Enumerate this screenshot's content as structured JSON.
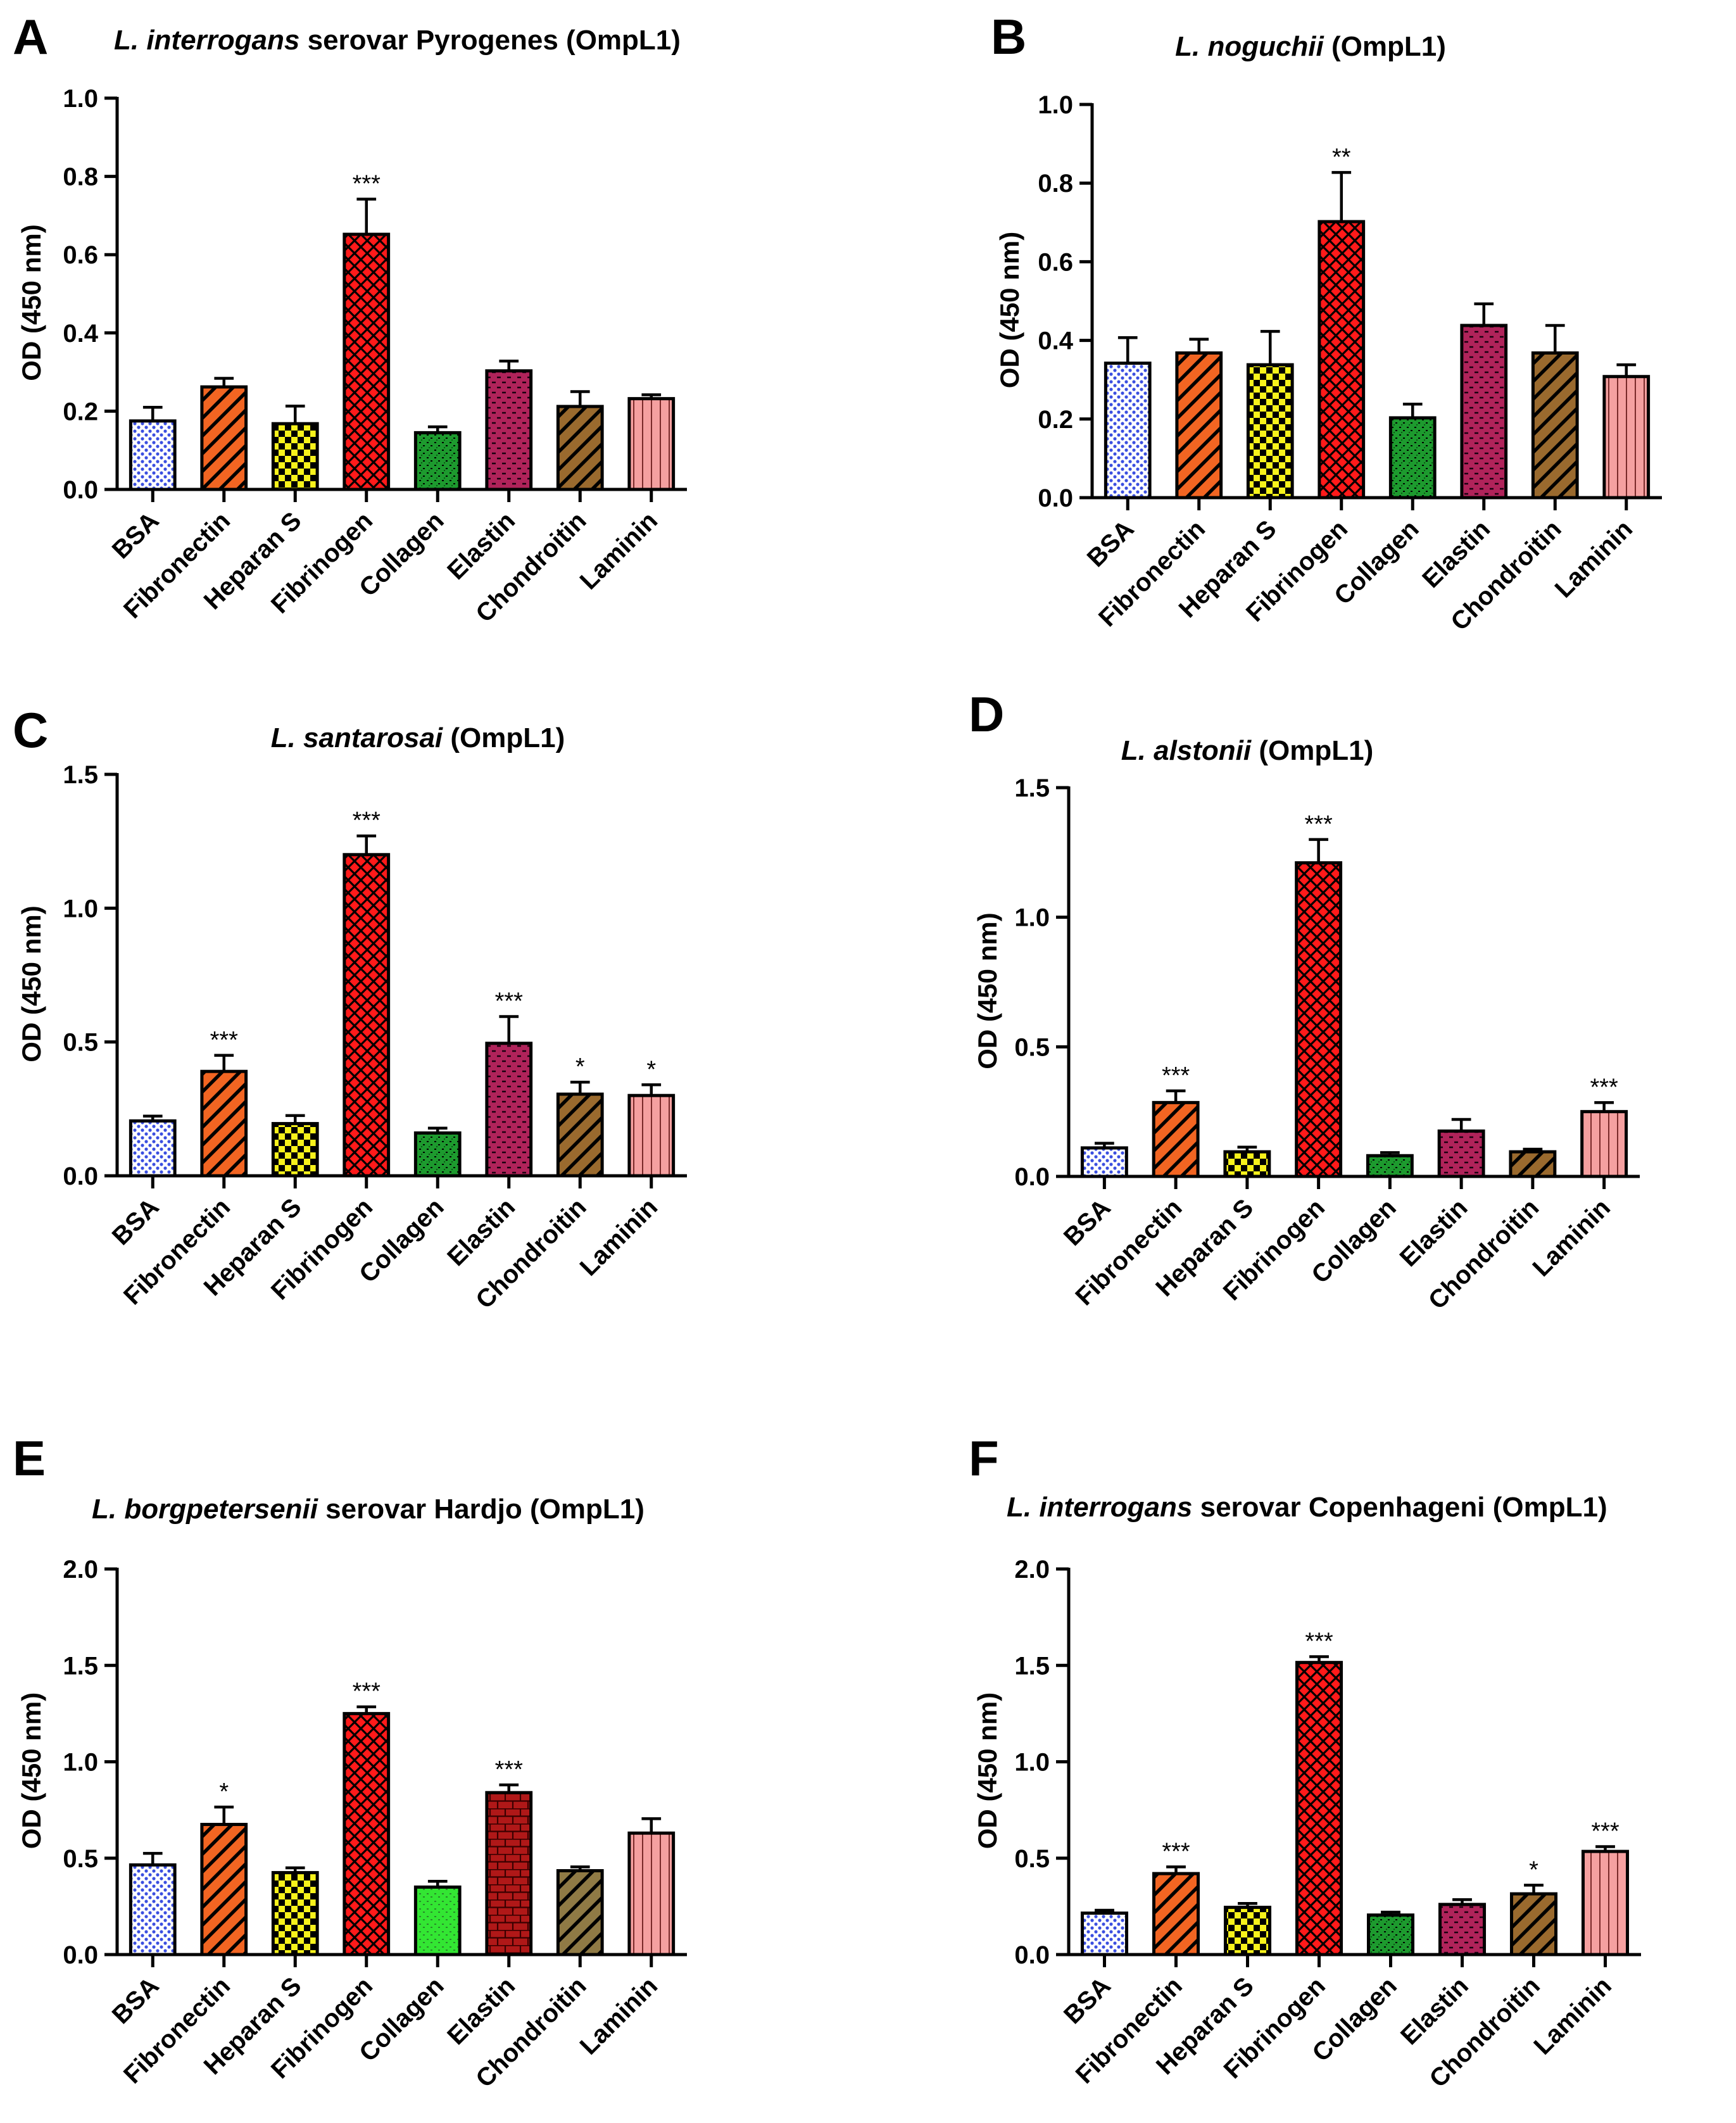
{
  "colors": {
    "BSA": "#3b4fe0",
    "Fibronectin": "#f26522",
    "Heparan S": "#f7f21b",
    "Fibrinogen": "#ff1a1a",
    "Collagen": "#1d9a2e",
    "Collagen_E": "#33e633",
    "Elastin": "#b0235a",
    "Elastin_E": "#b01818",
    "Chondroitin": "#9a6a2e",
    "Laminin": "#f5a0a0"
  },
  "chart_data": [
    {
      "type": "bar",
      "panel_letter": "A",
      "title_italic": "L. interrogans",
      "title_rest": " serovar Pyrogenes (OmpL1)",
      "ylabel": "OD (450 nm)",
      "ylim": [
        0,
        1.0
      ],
      "yticks": [
        "0.0",
        "0.2",
        "0.4",
        "0.6",
        "0.8",
        "1.0"
      ],
      "categories": [
        "BSA",
        "Fibronectin",
        "Heparan S",
        "Fibrinogen",
        "Collagen",
        "Elastin",
        "Chondroitin",
        "Laminin"
      ],
      "values": [
        0.175,
        0.262,
        0.168,
        0.652,
        0.145,
        0.303,
        0.212,
        0.232
      ],
      "errors": [
        0.035,
        0.022,
        0.045,
        0.09,
        0.015,
        0.025,
        0.038,
        0.01
      ],
      "significance": [
        "",
        "",
        "",
        "***",
        "",
        "",
        "",
        ""
      ]
    },
    {
      "type": "bar",
      "panel_letter": "B",
      "title_italic": "L. noguchii",
      "title_rest": " (OmpL1)",
      "ylabel": "OD (450 nm)",
      "ylim": [
        0,
        1.0
      ],
      "yticks": [
        "0.0",
        "0.2",
        "0.4",
        "0.6",
        "0.8",
        "1.0"
      ],
      "categories": [
        "BSA",
        "Fibronectin",
        "Heparan S",
        "Fibrinogen",
        "Collagen",
        "Elastin",
        "Chondroitin",
        "Laminin"
      ],
      "values": [
        0.342,
        0.368,
        0.338,
        0.702,
        0.203,
        0.438,
        0.368,
        0.308
      ],
      "errors": [
        0.065,
        0.035,
        0.085,
        0.125,
        0.035,
        0.055,
        0.07,
        0.03
      ],
      "significance": [
        "",
        "",
        "",
        "**",
        "",
        "",
        "",
        ""
      ]
    },
    {
      "type": "bar",
      "panel_letter": "C",
      "title_italic": "L. santarosai",
      "title_rest": " (OmpL1)",
      "ylabel": "OD (450 nm)",
      "ylim": [
        0,
        1.5
      ],
      "yticks": [
        "0.0",
        "0.5",
        "1.0",
        "1.5"
      ],
      "categories": [
        "BSA",
        "Fibronectin",
        "Heparan S",
        "Fibrinogen",
        "Collagen",
        "Elastin",
        "Chondroitin",
        "Laminin"
      ],
      "values": [
        0.205,
        0.39,
        0.195,
        1.2,
        0.16,
        0.495,
        0.305,
        0.3
      ],
      "errors": [
        0.018,
        0.06,
        0.03,
        0.07,
        0.018,
        0.1,
        0.045,
        0.04
      ],
      "significance": [
        "",
        "***",
        "",
        "***",
        "",
        "***",
        "*",
        "*"
      ]
    },
    {
      "type": "bar",
      "panel_letter": "D",
      "title_italic": "L. alstonii",
      "title_rest": "  (OmpL1)",
      "ylabel": "OD (450 nm)",
      "ylim": [
        0,
        1.5
      ],
      "yticks": [
        "0.0",
        "0.5",
        "1.0",
        "1.5"
      ],
      "categories": [
        "BSA",
        "Fibronectin",
        "Heparan S",
        "Fibrinogen",
        "Collagen",
        "Elastin",
        "Chondroitin",
        "Laminin"
      ],
      "values": [
        0.11,
        0.285,
        0.095,
        1.21,
        0.08,
        0.175,
        0.095,
        0.25
      ],
      "errors": [
        0.018,
        0.045,
        0.018,
        0.09,
        0.012,
        0.045,
        0.01,
        0.035
      ],
      "significance": [
        "",
        "***",
        "",
        "***",
        "",
        "",
        "",
        "***"
      ]
    },
    {
      "type": "bar",
      "panel_letter": "E",
      "title_italic": "L. borgpetersenii",
      "title_rest": " serovar Hardjo (OmpL1)",
      "ylabel": "OD (450 nm)",
      "ylim": [
        0,
        2.0
      ],
      "yticks": [
        "0.0",
        "0.5",
        "1.0",
        "1.5",
        "2.0"
      ],
      "categories": [
        "BSA",
        "Fibronectin",
        "Heparan S",
        "Fibrinogen",
        "Collagen",
        "Elastin",
        "Chondroitin",
        "Laminin"
      ],
      "values": [
        0.465,
        0.675,
        0.425,
        1.25,
        0.35,
        0.84,
        0.435,
        0.63
      ],
      "errors": [
        0.06,
        0.09,
        0.025,
        0.035,
        0.03,
        0.04,
        0.02,
        0.075
      ],
      "significance": [
        "",
        "*",
        "",
        "***",
        "",
        "***",
        "",
        ""
      ]
    },
    {
      "type": "bar",
      "panel_letter": "F",
      "title_italic": "L. interrogans",
      "title_rest": " serovar Copenhageni (OmpL1)",
      "ylabel": "OD (450 nm)",
      "ylim": [
        0,
        2.0
      ],
      "yticks": [
        "0.0",
        "0.5",
        "1.0",
        "1.5",
        "2.0"
      ],
      "categories": [
        "BSA",
        "Fibronectin",
        "Heparan S",
        "Fibrinogen",
        "Collagen",
        "Elastin",
        "Chondroitin",
        "Laminin"
      ],
      "values": [
        0.215,
        0.42,
        0.245,
        1.515,
        0.205,
        0.26,
        0.315,
        0.535
      ],
      "errors": [
        0.015,
        0.035,
        0.02,
        0.03,
        0.015,
        0.025,
        0.045,
        0.025
      ],
      "significance": [
        "",
        "***",
        "",
        "***",
        "",
        "",
        "*",
        "***"
      ]
    }
  ]
}
